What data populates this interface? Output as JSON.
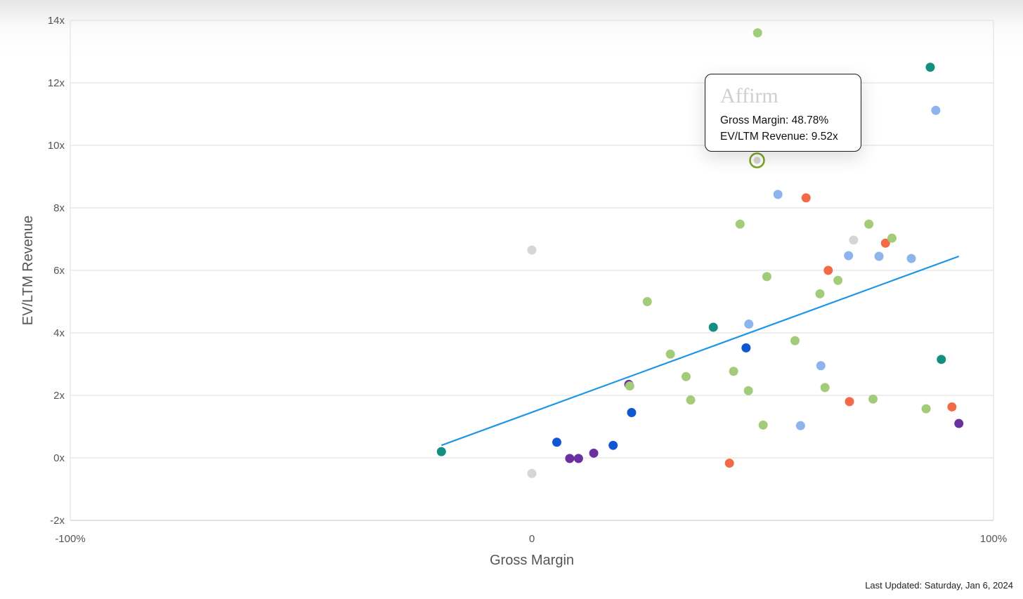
{
  "chart_data": {
    "type": "scatter",
    "xlabel": "Gross Margin",
    "ylabel": "EV/LTM Revenue",
    "xlim": [
      -100,
      100
    ],
    "ylim": [
      -2,
      14
    ],
    "x_ticks": [
      {
        "value": -100,
        "label": "-100%"
      },
      {
        "value": 0,
        "label": "0"
      },
      {
        "value": 100,
        "label": "100%"
      }
    ],
    "y_ticks": [
      {
        "value": -2,
        "label": "-2x"
      },
      {
        "value": 0,
        "label": "0x"
      },
      {
        "value": 2,
        "label": "2x"
      },
      {
        "value": 4,
        "label": "4x"
      },
      {
        "value": 6,
        "label": "6x"
      },
      {
        "value": 8,
        "label": "8x"
      },
      {
        "value": 10,
        "label": "10x"
      },
      {
        "value": 12,
        "label": "12x"
      },
      {
        "value": 14,
        "label": "14x"
      }
    ],
    "grid": true,
    "points": [
      {
        "x": -19.6,
        "y": 0.2,
        "color": "#138f82"
      },
      {
        "x": 0,
        "y": 6.65,
        "color": "#d8d5d7"
      },
      {
        "x": 0,
        "y": -0.5,
        "color": "#d8d5d7"
      },
      {
        "x": 5.4,
        "y": 0.5,
        "color": "#1056d3"
      },
      {
        "x": 8.2,
        "y": -0.02,
        "color": "#6b30a0"
      },
      {
        "x": 10.1,
        "y": -0.02,
        "color": "#6b30a0"
      },
      {
        "x": 13.4,
        "y": 0.15,
        "color": "#6b30a0"
      },
      {
        "x": 17.6,
        "y": 0.4,
        "color": "#1056d3"
      },
      {
        "x": 21.0,
        "y": 2.35,
        "color": "#6b30a0"
      },
      {
        "x": 21.2,
        "y": 2.3,
        "color": "#a3cc7a"
      },
      {
        "x": 21.6,
        "y": 1.45,
        "color": "#1056d3"
      },
      {
        "x": 25.0,
        "y": 5.0,
        "color": "#a3cc7a"
      },
      {
        "x": 30.0,
        "y": 3.32,
        "color": "#a3cc7a"
      },
      {
        "x": 33.4,
        "y": 2.6,
        "color": "#a3cc7a"
      },
      {
        "x": 34.4,
        "y": 1.85,
        "color": "#a3cc7a"
      },
      {
        "x": 39.3,
        "y": 4.18,
        "color": "#138f82"
      },
      {
        "x": 42.8,
        "y": -0.17,
        "color": "#f26b46"
      },
      {
        "x": 43.7,
        "y": 2.77,
        "color": "#a3cc7a"
      },
      {
        "x": 45.1,
        "y": 7.48,
        "color": "#a3cc7a"
      },
      {
        "x": 46.4,
        "y": 3.52,
        "color": "#1056d3"
      },
      {
        "x": 46.9,
        "y": 2.15,
        "color": "#a3cc7a"
      },
      {
        "x": 47.0,
        "y": 4.28,
        "color": "#8db4ec"
      },
      {
        "x": 48.78,
        "y": 9.52,
        "color": "#a3cc7a",
        "highlighted": true
      },
      {
        "x": 48.9,
        "y": 13.6,
        "color": "#a3cc7a"
      },
      {
        "x": 50.1,
        "y": 1.05,
        "color": "#a3cc7a"
      },
      {
        "x": 50.9,
        "y": 5.8,
        "color": "#a3cc7a"
      },
      {
        "x": 53.3,
        "y": 8.43,
        "color": "#8db4ec"
      },
      {
        "x": 57.0,
        "y": 3.75,
        "color": "#a3cc7a"
      },
      {
        "x": 58.2,
        "y": 1.03,
        "color": "#8db4ec"
      },
      {
        "x": 59.4,
        "y": 8.32,
        "color": "#f26b46"
      },
      {
        "x": 62.4,
        "y": 5.25,
        "color": "#a3cc7a"
      },
      {
        "x": 62.6,
        "y": 2.95,
        "color": "#8db4ec"
      },
      {
        "x": 63.5,
        "y": 2.25,
        "color": "#a3cc7a"
      },
      {
        "x": 64.2,
        "y": 6.0,
        "color": "#f26b46"
      },
      {
        "x": 66.3,
        "y": 5.68,
        "color": "#a3cc7a"
      },
      {
        "x": 68.6,
        "y": 6.47,
        "color": "#8db4ec"
      },
      {
        "x": 68.8,
        "y": 1.8,
        "color": "#f26b46"
      },
      {
        "x": 69.7,
        "y": 6.97,
        "color": "#d8d5d7"
      },
      {
        "x": 73.0,
        "y": 7.48,
        "color": "#a3cc7a"
      },
      {
        "x": 73.9,
        "y": 1.88,
        "color": "#a3cc7a"
      },
      {
        "x": 75.2,
        "y": 6.45,
        "color": "#8db4ec"
      },
      {
        "x": 76.6,
        "y": 6.87,
        "color": "#f26b46"
      },
      {
        "x": 78.0,
        "y": 7.03,
        "color": "#a3cc7a"
      },
      {
        "x": 82.2,
        "y": 6.38,
        "color": "#8db4ec"
      },
      {
        "x": 85.4,
        "y": 1.57,
        "color": "#a3cc7a"
      },
      {
        "x": 86.3,
        "y": 12.5,
        "color": "#138f82"
      },
      {
        "x": 87.5,
        "y": 11.12,
        "color": "#8db4ec"
      },
      {
        "x": 88.7,
        "y": 3.15,
        "color": "#138f82"
      },
      {
        "x": 91.0,
        "y": 1.63,
        "color": "#f26b46"
      },
      {
        "x": 92.5,
        "y": 1.1,
        "color": "#6b30a0"
      }
    ],
    "trendline": {
      "x": [
        -19.6,
        92.5
      ],
      "y": [
        0.4,
        6.45
      ],
      "color": "#1c96e6"
    },
    "tooltip": {
      "title": "Affirm",
      "line1": "Gross Margin: 48.78%",
      "line2": "EV/LTM Revenue: 9.52x"
    },
    "highlight_color": "#7da322"
  },
  "footer": {
    "last_updated": "Last Updated: Saturday, Jan 6, 2024"
  }
}
